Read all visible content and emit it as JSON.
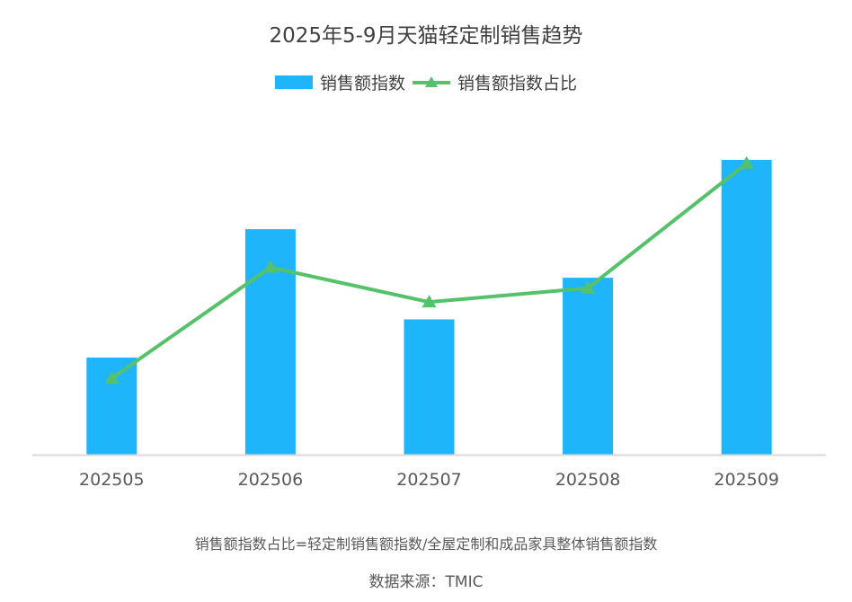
{
  "chart_data": {
    "type": "bar",
    "title": "2025年5-9月天猫轻定制销售趋势",
    "categories": [
      "202505",
      "202506",
      "202507",
      "202508",
      "202509"
    ],
    "series": [
      {
        "name": "销售额指数",
        "type": "bar",
        "color": "#1FB5FA",
        "values": [
          28,
          65,
          39,
          51,
          85
        ]
      },
      {
        "name": "销售额指数占比",
        "type": "line",
        "marker": "triangle",
        "color": "#55C26A",
        "values": [
          22,
          54,
          44,
          48,
          84
        ]
      }
    ],
    "ylim": [
      0,
      100
    ],
    "xlabel": "",
    "ylabel": "",
    "grid": false,
    "legend_position": "top"
  },
  "footnote": "销售额指数占比=轻定制销售额指数/全屋定制和成品家具整体销售额指数",
  "source": "数据来源：TMIC"
}
